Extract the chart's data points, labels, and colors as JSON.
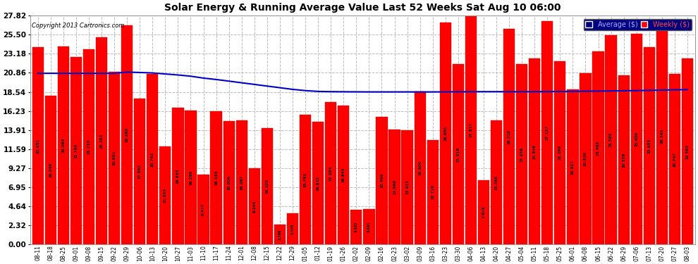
{
  "title": "Solar Energy & Running Average Value Last 52 Weeks Sat Aug 10 06:00",
  "copyright": "Copyright 2013 Cartronics.com",
  "bar_color": "#ff0000",
  "avg_line_color": "#0000cc",
  "background_color": "#ffffff",
  "grid_color": "#bbbbbb",
  "categories": [
    "08-11",
    "08-18",
    "08-25",
    "09-01",
    "09-08",
    "09-15",
    "09-22",
    "09-29",
    "10-06",
    "10-13",
    "10-20",
    "10-27",
    "11-03",
    "11-10",
    "11-17",
    "11-24",
    "12-01",
    "12-08",
    "12-15",
    "12-22",
    "12-29",
    "01-05",
    "01-12",
    "01-19",
    "01-26",
    "02-02",
    "02-09",
    "02-16",
    "02-23",
    "03-02",
    "03-09",
    "03-16",
    "03-23",
    "03-30",
    "04-06",
    "04-13",
    "04-20",
    "04-27",
    "05-04",
    "05-11",
    "05-18",
    "05-25",
    "06-01",
    "06-08",
    "06-15",
    "06-22",
    "06-29",
    "07-06",
    "07-13",
    "07-20",
    "07-27",
    "08-03"
  ],
  "weekly": [
    23.951,
    18.049,
    24.098,
    22.768,
    23.733,
    25.193,
    20.981,
    26.666,
    17.692,
    20.743,
    11.933,
    16.655,
    16.269,
    8.477,
    16.154,
    15.004,
    15.087,
    9.244,
    14.105,
    2.398,
    3.745,
    15.762,
    14.912,
    17.295,
    16.845,
    4.203,
    4.261,
    15.499,
    13.96,
    13.921,
    18.6,
    12.718,
    26.98,
    21.919,
    27.817,
    7.829,
    15.068,
    26.216,
    21.959,
    22.646,
    27.127,
    22.296,
    18.817,
    20.82,
    23.488,
    25.399,
    20.538,
    25.6,
    23.953,
    26.342,
    20.747,
    22.593
  ],
  "running_avg": [
    20.8,
    20.8,
    20.8,
    20.8,
    20.8,
    20.8,
    20.8,
    20.95,
    20.9,
    20.85,
    20.72,
    20.6,
    20.45,
    20.22,
    20.05,
    19.85,
    19.65,
    19.45,
    19.25,
    19.05,
    18.85,
    18.7,
    18.6,
    18.57,
    18.56,
    18.55,
    18.54,
    18.54,
    18.54,
    18.54,
    18.54,
    18.54,
    18.55,
    18.56,
    18.57,
    18.57,
    18.57,
    18.57,
    18.57,
    18.57,
    18.58,
    18.59,
    18.6,
    18.62,
    18.64,
    18.66,
    18.68,
    18.7,
    18.73,
    18.76,
    18.79,
    18.82
  ],
  "ytick_values": [
    0.0,
    2.32,
    4.64,
    6.95,
    9.27,
    11.59,
    13.91,
    16.23,
    18.54,
    20.86,
    23.18,
    25.5,
    27.82
  ],
  "ytick_labels": [
    "0.00",
    "2.32",
    "4.64",
    "6.95",
    "9.27",
    "11.59",
    "13.91",
    "16.23",
    "18.54",
    "20.86",
    "23.18",
    "25.50",
    "27.82"
  ],
  "ymax": 27.82,
  "legend_bg": "#000080"
}
